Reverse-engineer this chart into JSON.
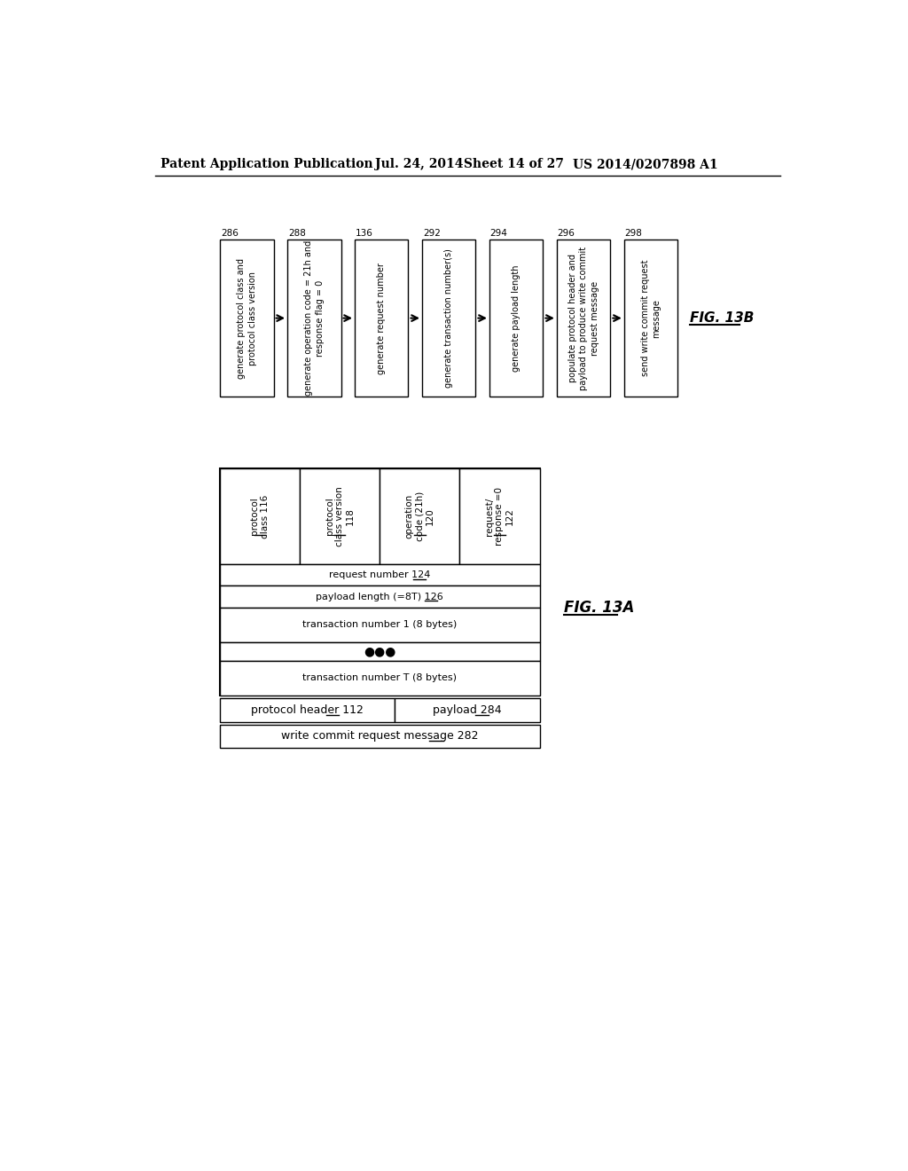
{
  "header_text": "Patent Application Publication",
  "header_date": "Jul. 24, 2014",
  "header_sheet": "Sheet 14 of 27",
  "header_patent": "US 2014/0207898 A1",
  "bg_color": "#ffffff",
  "fig13b": {
    "label": "FIG. 13B",
    "boxes": [
      {
        "id": "286",
        "text": "generate protocol class and\nprotocol class version"
      },
      {
        "id": "288",
        "text": "generate operation code = 21h and\nresponse flag = 0"
      },
      {
        "id": "136",
        "text": "generate request number"
      },
      {
        "id": "292",
        "text": "generate transaction number(s)"
      },
      {
        "id": "294",
        "text": "generate payload length"
      },
      {
        "id": "296",
        "text": "populate protocol header and\npayload to produce write commit\nrequest message"
      },
      {
        "id": "298",
        "text": "send write commit request\nmessage"
      }
    ]
  },
  "fig13a": {
    "label": "FIG. 13A",
    "header_cols": [
      "protocol\nclass 116",
      "protocol\nclass version\n118",
      "operation\ncode (21h)\n120",
      "request/\nresponse =0\n122"
    ],
    "data_rows": [
      "request number 124",
      "payload length (=8T) 126",
      "transaction number 1 (8 bytes)",
      "●●●",
      "transaction number T (8 bytes)"
    ],
    "underline_rows": [
      0,
      1,
      2,
      4
    ],
    "mid_label_left": "protocol header 112",
    "mid_label_right": "payload 284",
    "bottom_label": "write commit request message 282"
  }
}
